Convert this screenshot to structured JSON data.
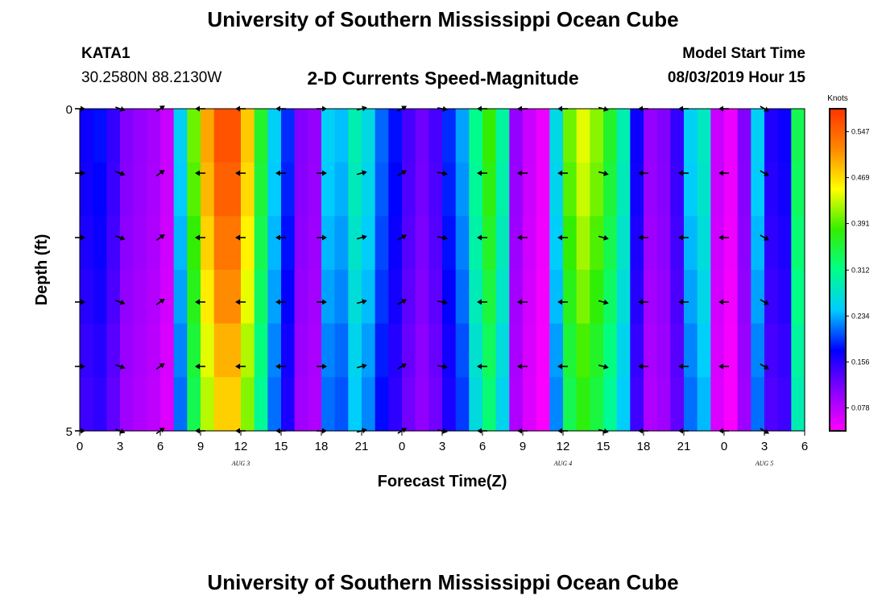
{
  "header": {
    "title": "University of Southern Mississippi Ocean Cube",
    "station_id": "KATA1",
    "coordinates": "30.2580N 88.2130W",
    "model_start_label": "Model Start Time",
    "model_start_value": "08/03/2019 Hour 15",
    "footer_title": "University of Southern Mississippi Ocean Cube"
  },
  "chart_data": {
    "type": "heatmap",
    "title": "2-D Currents Speed-Magnitude",
    "xlabel": "Forecast Time(Z)",
    "ylabel": "Depth (ft)",
    "x_tick_labels": [
      "0",
      "3",
      "6",
      "9",
      "12",
      "15",
      "18",
      "21",
      "0",
      "3",
      "6",
      "9",
      "12",
      "15",
      "18",
      "21",
      "0",
      "3",
      "6"
    ],
    "x_range_hours": [
      0,
      54
    ],
    "date_labels": [
      {
        "hour": 12,
        "label": "AUG 3"
      },
      {
        "hour": 36,
        "label": "AUG 4"
      },
      {
        "hour": 51,
        "label": "AUG 5"
      }
    ],
    "y_range": [
      0,
      5
    ],
    "y_tick_labels": [
      "0",
      "5"
    ],
    "colorbar": {
      "unit": "Knots",
      "min": 0.039,
      "max": 0.586,
      "tick_values": [
        0.547,
        0.469,
        0.391,
        0.312,
        0.234,
        0.156,
        0.078
      ],
      "colors": [
        "#ff00ff",
        "#8800ff",
        "#0000ff",
        "#00ccff",
        "#00ff88",
        "#33ee00",
        "#ffff00",
        "#ff8800",
        "#ff3300"
      ]
    },
    "speed_by_hour": [
      0.17,
      0.18,
      0.15,
      0.11,
      0.1,
      0.09,
      0.07,
      0.25,
      0.4,
      0.5,
      0.56,
      0.56,
      0.48,
      0.36,
      0.25,
      0.19,
      0.11,
      0.1,
      0.25,
      0.24,
      0.29,
      0.26,
      0.21,
      0.18,
      0.14,
      0.12,
      0.14,
      0.19,
      0.23,
      0.31,
      0.38,
      0.3,
      0.1,
      0.07,
      0.05,
      0.26,
      0.4,
      0.44,
      0.41,
      0.36,
      0.29,
      0.17,
      0.1,
      0.11,
      0.15,
      0.25,
      0.28,
      0.07,
      0.05,
      0.11,
      0.25,
      0.16,
      0.17,
      0.34,
      0.42
    ],
    "depth_factor": [
      1.0,
      0.98,
      0.95,
      0.92,
      0.88,
      0.85
    ],
    "arrow_hours": [
      0,
      3,
      6,
      9,
      12,
      15,
      18,
      21,
      24,
      27,
      30,
      33,
      36,
      39,
      42,
      45,
      48,
      51
    ],
    "arrow_depths": [
      0,
      1,
      2,
      3,
      4,
      5
    ],
    "arrow_directions_deg": [
      0,
      20,
      -35,
      180,
      180,
      180,
      0,
      -15,
      -30,
      10,
      180,
      180,
      180,
      15,
      180,
      180,
      180,
      30
    ]
  }
}
